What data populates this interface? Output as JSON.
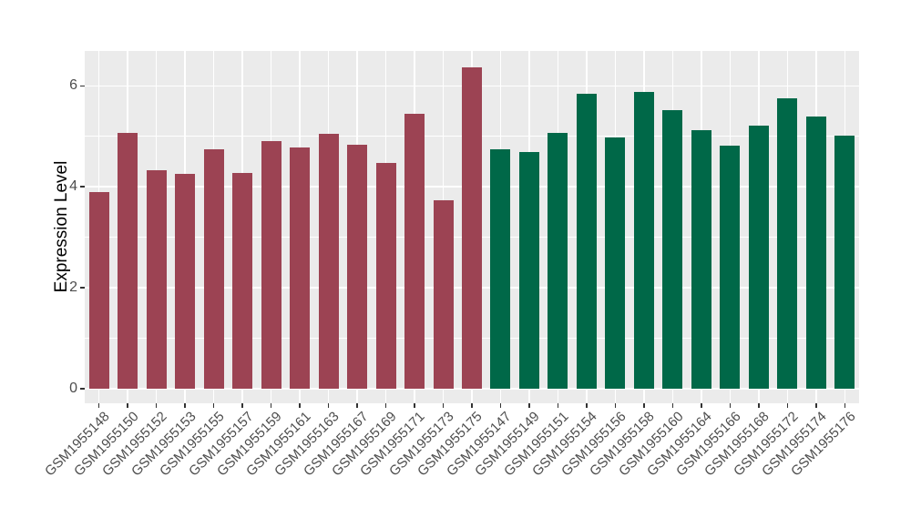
{
  "chart_data": {
    "type": "bar",
    "title": "",
    "ylabel": "Expression Level",
    "xlabel": "",
    "ylim": [
      -0.29,
      6.69
    ],
    "yticks": [
      0,
      2,
      4,
      6
    ],
    "minor_gridlines": [
      1,
      3,
      5
    ],
    "grid": true,
    "legend": false,
    "colors": {
      "panel_bg": "#EBEBEB",
      "gridline": "#FFFFFF",
      "axis_text": "#4D4D4D",
      "axis_title": "#000000",
      "tick_mark": "#333333",
      "group_red": "#9C4353",
      "group_green": "#006848"
    },
    "bars": [
      {
        "label": "GSM1955148",
        "value": 3.9,
        "group": "group_red"
      },
      {
        "label": "GSM1955150",
        "value": 5.06,
        "group": "group_red"
      },
      {
        "label": "GSM1955152",
        "value": 4.33,
        "group": "group_red"
      },
      {
        "label": "GSM1955153",
        "value": 4.25,
        "group": "group_red"
      },
      {
        "label": "GSM1955155",
        "value": 4.74,
        "group": "group_red"
      },
      {
        "label": "GSM1955157",
        "value": 4.28,
        "group": "group_red"
      },
      {
        "label": "GSM1955159",
        "value": 4.9,
        "group": "group_red"
      },
      {
        "label": "GSM1955161",
        "value": 4.77,
        "group": "group_red"
      },
      {
        "label": "GSM1955163",
        "value": 5.04,
        "group": "group_red"
      },
      {
        "label": "GSM1955167",
        "value": 4.83,
        "group": "group_red"
      },
      {
        "label": "GSM1955169",
        "value": 4.47,
        "group": "group_red"
      },
      {
        "label": "GSM1955171",
        "value": 5.44,
        "group": "group_red"
      },
      {
        "label": "GSM1955173",
        "value": 3.73,
        "group": "group_red"
      },
      {
        "label": "GSM1955175",
        "value": 6.37,
        "group": "group_red"
      },
      {
        "label": "GSM1955147",
        "value": 4.74,
        "group": "group_green"
      },
      {
        "label": "GSM1955149",
        "value": 4.69,
        "group": "group_green"
      },
      {
        "label": "GSM1955151",
        "value": 5.07,
        "group": "group_green"
      },
      {
        "label": "GSM1955154",
        "value": 5.85,
        "group": "group_green"
      },
      {
        "label": "GSM1955156",
        "value": 4.98,
        "group": "group_green"
      },
      {
        "label": "GSM1955158",
        "value": 5.87,
        "group": "group_green"
      },
      {
        "label": "GSM1955160",
        "value": 5.52,
        "group": "group_green"
      },
      {
        "label": "GSM1955164",
        "value": 5.12,
        "group": "group_green"
      },
      {
        "label": "GSM1955166",
        "value": 4.81,
        "group": "group_green"
      },
      {
        "label": "GSM1955168",
        "value": 5.21,
        "group": "group_green"
      },
      {
        "label": "GSM1955172",
        "value": 5.75,
        "group": "group_green"
      },
      {
        "label": "GSM1955174",
        "value": 5.39,
        "group": "group_green"
      },
      {
        "label": "GSM1955176",
        "value": 5.01,
        "group": "group_green"
      }
    ]
  }
}
